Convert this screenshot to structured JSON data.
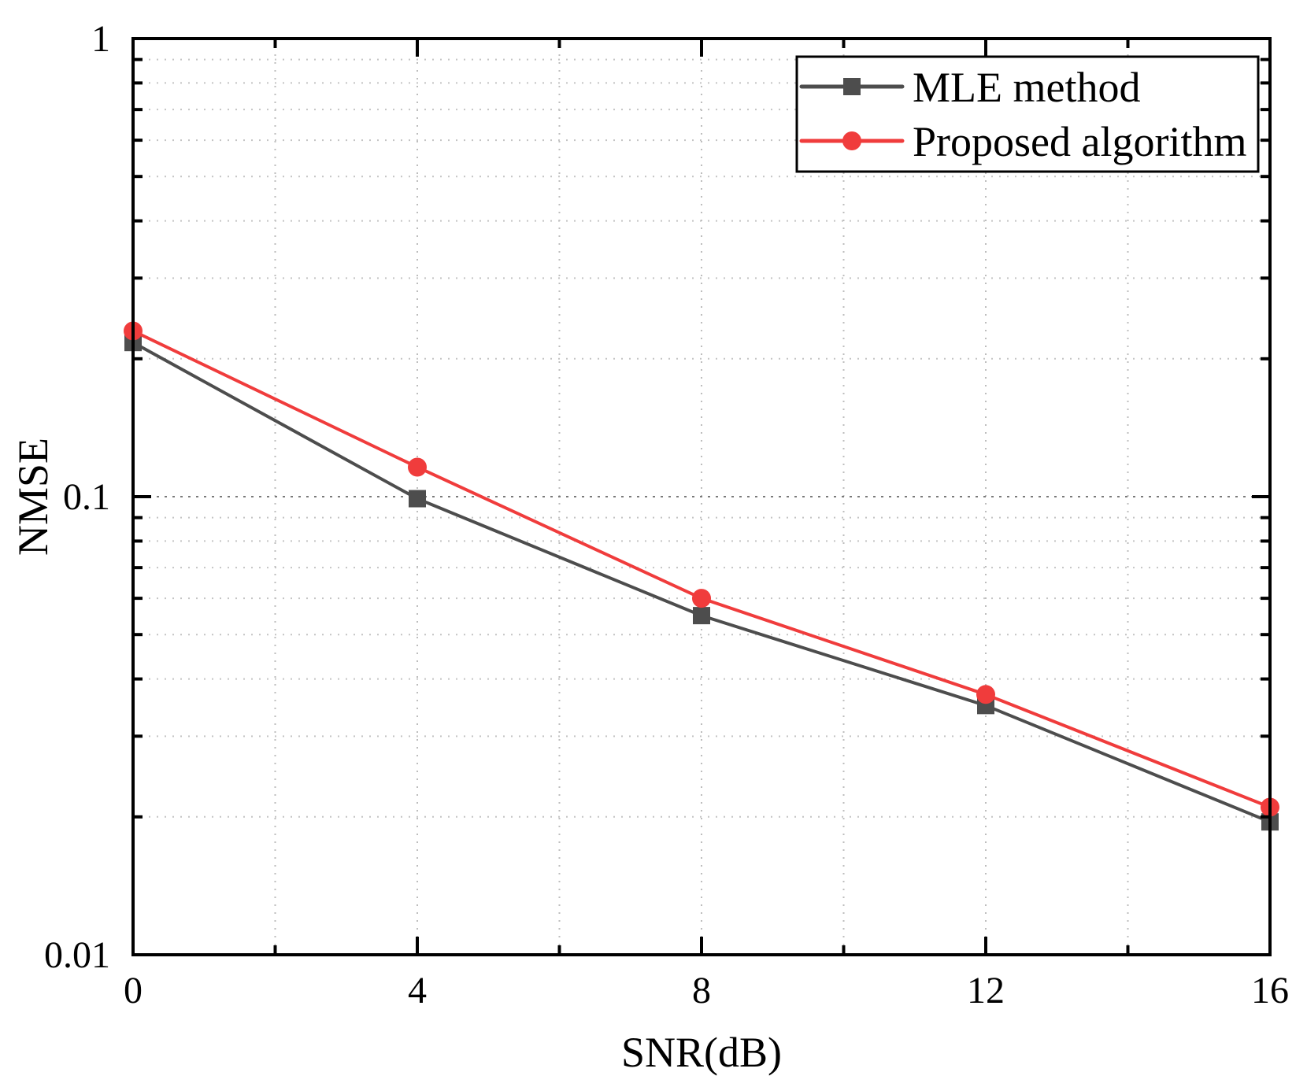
{
  "chart_data": {
    "type": "line",
    "title": "",
    "xlabel": "SNR(dB)",
    "ylabel": "NMSE",
    "x": [
      0,
      4,
      8,
      12,
      16
    ],
    "xlim": [
      0,
      16
    ],
    "ylim": [
      0.01,
      1
    ],
    "yscale": "log",
    "x_ticks": [
      0,
      4,
      8,
      12,
      16
    ],
    "x_tick_labels": [
      "0",
      "4",
      "8",
      "12",
      "16"
    ],
    "x_minor_ticks": [
      2,
      6,
      10,
      14
    ],
    "y_ticks": [
      0.01,
      0.1,
      1
    ],
    "y_tick_labels": [
      "0.01",
      "0.1",
      "1"
    ],
    "grid": true,
    "legend_position": "upper right",
    "series": [
      {
        "name": "MLE method",
        "color": "#4d4d4d",
        "marker": "square",
        "values": [
          0.217,
          0.099,
          0.055,
          0.035,
          0.0195
        ]
      },
      {
        "name": "Proposed algorithm",
        "color": "#f03c3c",
        "marker": "circle",
        "values": [
          0.23,
          0.116,
          0.06,
          0.037,
          0.021
        ]
      }
    ]
  },
  "labels": {
    "xlabel": "SNR(dB)",
    "ylabel": "NMSE",
    "legend": [
      "MLE method",
      "Proposed algorithm"
    ]
  }
}
